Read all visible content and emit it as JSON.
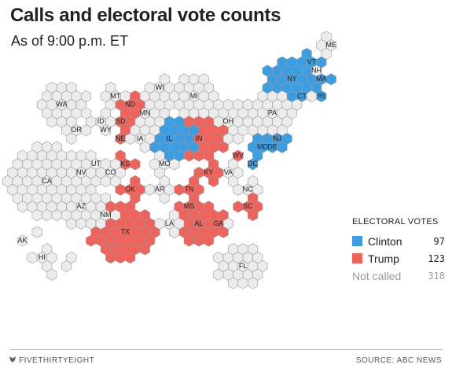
{
  "header": {
    "title": "Calls and electoral vote counts",
    "subtitle": "As of 9:00 p.m. ET"
  },
  "colors": {
    "clinton": "#3b9ee2",
    "trump": "#f0625a",
    "not_called": "#ececec"
  },
  "legend": {
    "title": "ELECTORAL VOTES",
    "rows": [
      {
        "name": "Clinton",
        "votes": "97"
      },
      {
        "name": "Trump",
        "votes": "123"
      },
      {
        "name": "Not called",
        "votes": "318"
      }
    ]
  },
  "states": [
    {
      "abbr": "WA",
      "status": "not_called"
    },
    {
      "abbr": "OR",
      "status": "not_called"
    },
    {
      "abbr": "CA",
      "status": "not_called"
    },
    {
      "abbr": "ID",
      "status": "not_called"
    },
    {
      "abbr": "NV",
      "status": "not_called"
    },
    {
      "abbr": "UT",
      "status": "not_called"
    },
    {
      "abbr": "AZ",
      "status": "not_called"
    },
    {
      "abbr": "MT",
      "status": "not_called"
    },
    {
      "abbr": "WY",
      "status": "trump"
    },
    {
      "abbr": "CO",
      "status": "not_called"
    },
    {
      "abbr": "NM",
      "status": "not_called"
    },
    {
      "abbr": "ND",
      "status": "trump"
    },
    {
      "abbr": "SD",
      "status": "trump"
    },
    {
      "abbr": "NE",
      "status": "trump"
    },
    {
      "abbr": "KS",
      "status": "trump"
    },
    {
      "abbr": "OK",
      "status": "trump"
    },
    {
      "abbr": "TX",
      "status": "trump"
    },
    {
      "abbr": "MN",
      "status": "not_called"
    },
    {
      "abbr": "IA",
      "status": "not_called"
    },
    {
      "abbr": "MO",
      "status": "not_called"
    },
    {
      "abbr": "AR",
      "status": "not_called"
    },
    {
      "abbr": "LA",
      "status": "not_called"
    },
    {
      "abbr": "WI",
      "status": "not_called"
    },
    {
      "abbr": "IL",
      "status": "clinton"
    },
    {
      "abbr": "MS",
      "status": "trump"
    },
    {
      "abbr": "MI",
      "status": "not_called"
    },
    {
      "abbr": "IN",
      "status": "trump"
    },
    {
      "abbr": "KY",
      "status": "trump"
    },
    {
      "abbr": "TN",
      "status": "trump"
    },
    {
      "abbr": "AL",
      "status": "trump"
    },
    {
      "abbr": "OH",
      "status": "not_called"
    },
    {
      "abbr": "WV",
      "status": "trump"
    },
    {
      "abbr": "GA",
      "status": "not_called"
    },
    {
      "abbr": "FL",
      "status": "not_called"
    },
    {
      "abbr": "SC",
      "status": "trump"
    },
    {
      "abbr": "NC",
      "status": "not_called"
    },
    {
      "abbr": "VA",
      "status": "not_called"
    },
    {
      "abbr": "PA",
      "status": "not_called"
    },
    {
      "abbr": "NY",
      "status": "clinton"
    },
    {
      "abbr": "VT",
      "status": "clinton"
    },
    {
      "abbr": "NH",
      "status": "not_called"
    },
    {
      "abbr": "ME",
      "status": "not_called"
    },
    {
      "abbr": "MA",
      "status": "clinton"
    },
    {
      "abbr": "RI",
      "status": "clinton"
    },
    {
      "abbr": "CT",
      "status": "not_called"
    },
    {
      "abbr": "NJ",
      "status": "clinton"
    },
    {
      "abbr": "DE",
      "status": "clinton"
    },
    {
      "abbr": "MD",
      "status": "clinton"
    },
    {
      "abbr": "DC",
      "status": "clinton"
    },
    {
      "abbr": "AK",
      "status": "not_called"
    },
    {
      "abbr": "HI",
      "status": "not_called"
    }
  ],
  "footer": {
    "brand": "FIVETHIRTYEIGHT",
    "source": "SOURCE: ABC NEWS",
    "brand_icon": "fox-logo-icon"
  }
}
